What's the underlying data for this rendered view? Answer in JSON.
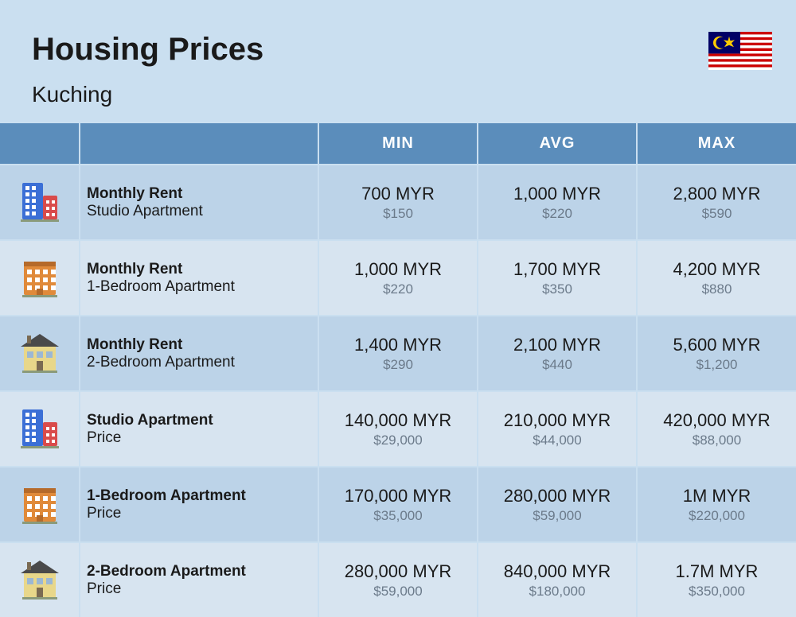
{
  "header": {
    "title": "Housing Prices",
    "subtitle": "Kuching"
  },
  "flag": {
    "stripes": [
      "#cc0000",
      "#ffffff",
      "#cc0000",
      "#ffffff",
      "#cc0000",
      "#ffffff",
      "#cc0000",
      "#ffffff",
      "#cc0000",
      "#ffffff",
      "#cc0000",
      "#ffffff",
      "#cc0000",
      "#ffffff"
    ],
    "canton_bg": "#010066",
    "star_color": "#ffcc00"
  },
  "colors": {
    "page_bg": "#cadff0",
    "header_row": "#5b8dbb",
    "row_even": "#bcd3e8",
    "row_odd": "#d7e4f0",
    "text_dark": "#1a1a1a",
    "text_muted": "#6b7a8a"
  },
  "columns": [
    "",
    "",
    "MIN",
    "AVG",
    "MAX"
  ],
  "rows": [
    {
      "icon": "tall-building",
      "title": "Monthly Rent",
      "sub": "Studio Apartment",
      "min": {
        "v": "700 MYR",
        "u": "$150"
      },
      "avg": {
        "v": "1,000 MYR",
        "u": "$220"
      },
      "max": {
        "v": "2,800 MYR",
        "u": "$590"
      }
    },
    {
      "icon": "mid-building",
      "title": "Monthly Rent",
      "sub": "1-Bedroom Apartment",
      "min": {
        "v": "1,000 MYR",
        "u": "$220"
      },
      "avg": {
        "v": "1,700 MYR",
        "u": "$350"
      },
      "max": {
        "v": "4,200 MYR",
        "u": "$880"
      }
    },
    {
      "icon": "house",
      "title": "Monthly Rent",
      "sub": "2-Bedroom Apartment",
      "min": {
        "v": "1,400 MYR",
        "u": "$290"
      },
      "avg": {
        "v": "2,100 MYR",
        "u": "$440"
      },
      "max": {
        "v": "5,600 MYR",
        "u": "$1,200"
      }
    },
    {
      "icon": "tall-building",
      "title": "Studio Apartment",
      "sub": "Price",
      "min": {
        "v": "140,000 MYR",
        "u": "$29,000"
      },
      "avg": {
        "v": "210,000 MYR",
        "u": "$44,000"
      },
      "max": {
        "v": "420,000 MYR",
        "u": "$88,000"
      }
    },
    {
      "icon": "mid-building",
      "title": "1-Bedroom Apartment",
      "sub": "Price",
      "min": {
        "v": "170,000 MYR",
        "u": "$35,000"
      },
      "avg": {
        "v": "280,000 MYR",
        "u": "$59,000"
      },
      "max": {
        "v": "1M MYR",
        "u": "$220,000"
      }
    },
    {
      "icon": "house",
      "title": "2-Bedroom Apartment",
      "sub": "Price",
      "min": {
        "v": "280,000 MYR",
        "u": "$59,000"
      },
      "avg": {
        "v": "840,000 MYR",
        "u": "$180,000"
      },
      "max": {
        "v": "1.7M MYR",
        "u": "$350,000"
      }
    }
  ],
  "icons": {
    "tall-building": {
      "primary": "#3b6fd6",
      "secondary": "#d94b4b"
    },
    "mid-building": {
      "primary": "#e08a3a",
      "secondary": "#b56a2a"
    },
    "house": {
      "primary": "#e8d78a",
      "secondary": "#7a6a52",
      "roof": "#4a4a4a"
    }
  }
}
